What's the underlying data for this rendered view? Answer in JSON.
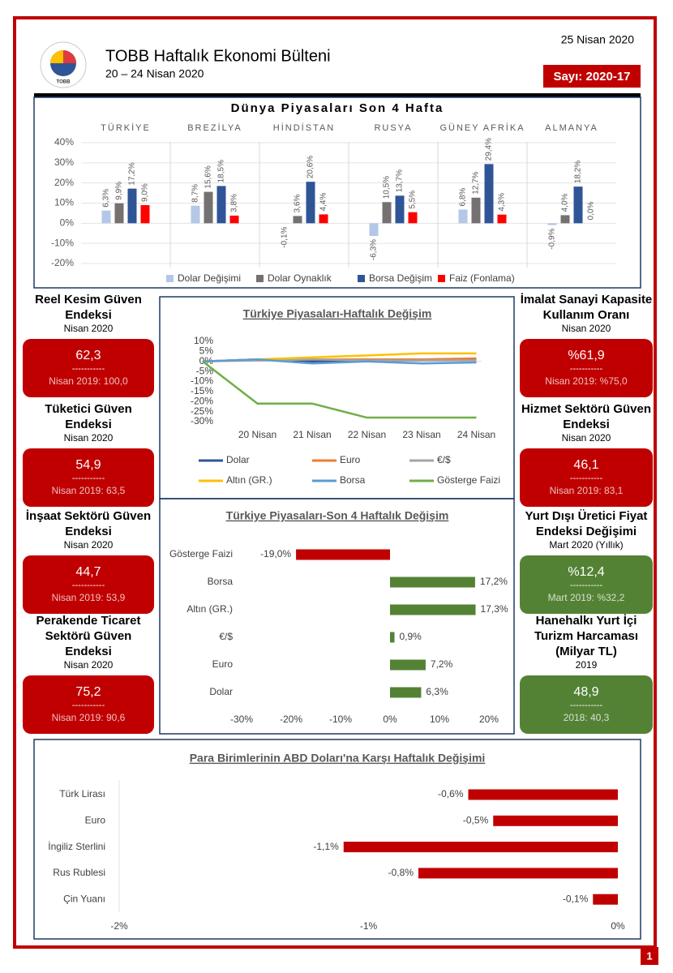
{
  "header": {
    "title": "TOBB Haftalık Ekonomi Bülteni",
    "subtitle": "20 – 24 Nisan 2020",
    "date": "25 Nisan 2020",
    "issue": "Sayı: 2020-17",
    "logo_text": "TOBB",
    "page_number": "1"
  },
  "chart_data": [
    {
      "type": "grouped-bar",
      "title": "Dünya Piyasaları Son 4 Hafta",
      "categories": [
        "TÜRKİYE",
        "BREZİLYA",
        "HİNDİSTAN",
        "RUSYA",
        "GÜNEY AFRİKA",
        "ALMANYA"
      ],
      "series": [
        {
          "name": "Dolar Değişimi",
          "color": "#b4c7e7",
          "values": [
            6.3,
            8.7,
            -0.1,
            -6.3,
            6.8,
            -0.9
          ],
          "value_labels": [
            "6,3%",
            "8,7%",
            "-0,1%",
            "-6,3%",
            "6,8%",
            "-0,9%"
          ]
        },
        {
          "name": "Dolar Oynaklık",
          "color": "#767171",
          "values": [
            9.9,
            15.6,
            3.6,
            10.5,
            12.7,
            4.0
          ],
          "value_labels": [
            "9,9%",
            "15,6%",
            "3,6%",
            "10,5%",
            "12,7%",
            "4,0%"
          ]
        },
        {
          "name": "Borsa Değişim",
          "color": "#2f5597",
          "values": [
            17.2,
            18.5,
            20.6,
            13.7,
            29.4,
            18.2
          ],
          "value_labels": [
            "17,2%",
            "18,5%",
            "20,6%",
            "13,7%",
            "29,4%",
            "18,2%"
          ]
        },
        {
          "name": "Faiz (Fonlama)",
          "color": "#ff0000",
          "values": [
            9.0,
            3.8,
            4.4,
            5.5,
            4.3,
            0.0
          ],
          "value_labels": [
            "9,0%",
            "3,8%",
            "4,4%",
            "5,5%",
            "4,3%",
            "0,0%"
          ]
        }
      ],
      "ylim": [
        -20,
        40
      ],
      "yticks": [
        {
          "value": -20,
          "label": "-20%"
        },
        {
          "value": -10,
          "label": "-10%"
        },
        {
          "value": 0,
          "label": "0%"
        },
        {
          "value": 10,
          "label": "10%"
        },
        {
          "value": 20,
          "label": "20%"
        },
        {
          "value": 30,
          "label": "30%"
        },
        {
          "value": 40,
          "label": "40%"
        }
      ],
      "grid": true
    },
    {
      "type": "line",
      "title": "Türkiye Piyasaları-Haftalık Değişim",
      "categories": [
        null,
        "20 Nisan",
        "21 Nisan",
        "22 Nisan",
        "23 Nisan",
        "24 Nisan"
      ],
      "series": [
        {
          "name": "Dolar",
          "color": "#2f5597",
          "values": [
            0,
            1,
            0,
            0.5,
            0.5,
            1
          ]
        },
        {
          "name": "Euro",
          "color": "#ed7d31",
          "values": [
            0,
            1,
            1,
            1,
            1,
            1.5
          ]
        },
        {
          "name": "€/$",
          "color": "#a5a5a5",
          "values": [
            0,
            0.5,
            1,
            0.5,
            0.5,
            0.5
          ]
        },
        {
          "name": "Altın (GR.)",
          "color": "#ffc000",
          "values": [
            0,
            1,
            2,
            3,
            4,
            4
          ]
        },
        {
          "name": "Borsa",
          "color": "#5b9bd5",
          "values": [
            0,
            1,
            -1,
            0,
            -1,
            -0.5
          ]
        },
        {
          "name": "Gösterge Faizi",
          "color": "#70ad47",
          "values": [
            0,
            -21,
            -21,
            -28,
            -28,
            -28
          ]
        }
      ],
      "ylim": [
        -30,
        10
      ],
      "yticks": [
        {
          "value": -30,
          "label": "-30%"
        },
        {
          "value": -25,
          "label": "-25%"
        },
        {
          "value": -20,
          "label": "-20%"
        },
        {
          "value": -15,
          "label": "-15%"
        },
        {
          "value": -10,
          "label": "-10%"
        },
        {
          "value": -5,
          "label": "-5%"
        },
        {
          "value": 0,
          "label": "0%"
        },
        {
          "value": 5,
          "label": "5%"
        },
        {
          "value": 10,
          "label": "10%"
        }
      ]
    },
    {
      "type": "hbar",
      "title": "Türkiye Piyasaları-Son 4 Haftalık Değişim",
      "categories": [
        "Gösterge Faizi",
        "Borsa",
        "Altın (GR.)",
        "€/$",
        "Euro",
        "Dolar"
      ],
      "values": [
        -19.0,
        17.2,
        17.3,
        0.9,
        7.2,
        6.3
      ],
      "value_labels": [
        "-19,0%",
        "17,2%",
        "17,3%",
        "0,9%",
        "7,2%",
        "6,3%"
      ],
      "colors": [
        "#c00000",
        "#548235",
        "#548235",
        "#548235",
        "#548235",
        "#548235"
      ],
      "xlim": [
        -30,
        20
      ],
      "xticks": [
        {
          "value": -30,
          "label": "-30%"
        },
        {
          "value": -20,
          "label": "-20%"
        },
        {
          "value": -10,
          "label": "-10%"
        },
        {
          "value": 0,
          "label": "0%"
        },
        {
          "value": 10,
          "label": "10%"
        },
        {
          "value": 20,
          "label": "20%"
        }
      ]
    },
    {
      "type": "hbar",
      "title": "Para Birimlerinin ABD Doları'na Karşı Haftalık Değişimi",
      "categories": [
        "Türk Lirası",
        "Euro",
        "İngiliz Sterlini",
        "Rus Rublesi",
        "Çin Yuanı"
      ],
      "values": [
        -0.6,
        -0.5,
        -1.1,
        -0.8,
        -0.1
      ],
      "value_labels": [
        "-0,6%",
        "-0,5%",
        "-1,1%",
        "-0,8%",
        "-0,1%"
      ],
      "color": "#c00000",
      "xlim": [
        -2,
        0
      ],
      "xticks": [
        {
          "value": -2,
          "label": "-2%"
        },
        {
          "value": -1,
          "label": "-1%"
        },
        {
          "value": 0,
          "label": "0%"
        }
      ]
    }
  ],
  "indicators": {
    "left": [
      {
        "title": "Reel Kesim Güven Endeksi",
        "period": "Nisan 2020",
        "value": "62,3",
        "separator": "-----------",
        "comparison": "Nisan 2019: 100,0",
        "color": "#c00000"
      },
      {
        "title": "Tüketici Güven Endeksi",
        "period": "Nisan 2020",
        "value": "54,9",
        "separator": "-----------",
        "comparison": "Nisan 2019: 63,5",
        "color": "#c00000"
      },
      {
        "title": "İnşaat Sektörü Güven Endeksi",
        "period": "Nisan 2020",
        "value": "44,7",
        "separator": "-----------",
        "comparison": "Nisan 2019: 53,9",
        "color": "#c00000"
      },
      {
        "title": "Perakende Ticaret Sektörü Güven Endeksi",
        "period": "Nisan 2020",
        "value": "75,2",
        "separator": "-----------",
        "comparison": "Nisan 2019: 90,6",
        "color": "#c00000"
      }
    ],
    "right": [
      {
        "title": "İmalat Sanayi Kapasite Kullanım Oranı",
        "period": "Nisan 2020",
        "value": "%61,9",
        "separator": "-----------",
        "comparison": "Nisan 2019: %75,0",
        "color": "#c00000"
      },
      {
        "title": "Hizmet Sektörü Güven Endeksi",
        "period": "Nisan 2020",
        "value": "46,1",
        "separator": "-----------",
        "comparison": "Nisan 2019: 83,1",
        "color": "#c00000"
      },
      {
        "title": "Yurt Dışı Üretici Fiyat Endeksi Değişimi",
        "period": "Mart 2020 (Yıllık)",
        "value": "%12,4",
        "separator": "-----------",
        "comparison": "Mart 2019: %32,2",
        "color": "#548235"
      },
      {
        "title": "Hanehalkı Yurt İçi Turizm Harcaması (Milyar TL)",
        "period": "2019",
        "value": "48,9",
        "separator": "-----------",
        "comparison": "2018: 40,3",
        "color": "#548235"
      }
    ]
  }
}
